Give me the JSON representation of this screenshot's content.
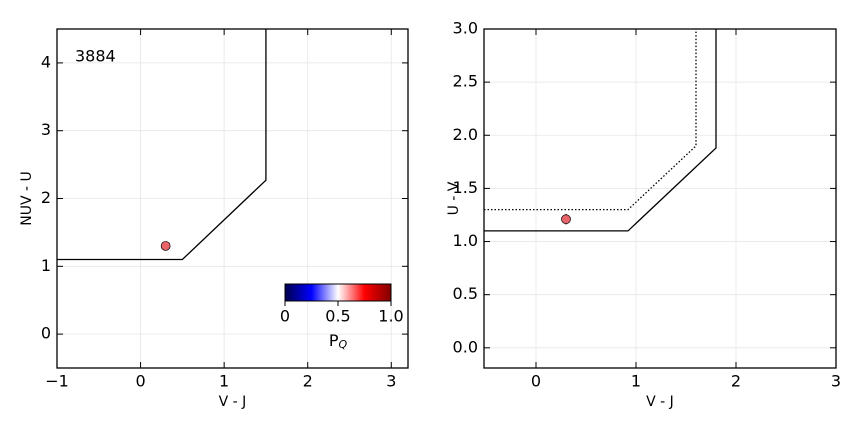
{
  "chart_data": [
    {
      "type": "line",
      "annotation": "3884",
      "x_label": "V - J",
      "y_label": "NUV - U",
      "xlim": [
        -1,
        3.2
      ],
      "ylim": [
        -0.5,
        4.5
      ],
      "xticks": [
        {
          "value": -1,
          "label": "−1"
        },
        0,
        1,
        2,
        3
      ],
      "yticks": [
        0,
        1,
        2,
        3,
        4
      ],
      "grid": true,
      "lines": [
        {
          "x": [
            -1,
            0.5,
            1.5,
            1.5
          ],
          "y": [
            1.1,
            1.1,
            2.27,
            4.5
          ],
          "style": "solid",
          "color": "#000000"
        }
      ],
      "points": [
        {
          "x": 0.3,
          "y": 1.3,
          "yerr": 0.06,
          "color": "#e8636a"
        }
      ],
      "colorbar": {
        "label": "P",
        "label_sub": "Q",
        "clim": [
          0,
          1
        ],
        "ticks": [
          0,
          0.5,
          {
            "value": 1,
            "label": "1.0"
          }
        ],
        "colors": [
          "#00004c",
          "#0000ff",
          "#ffffff",
          "#ff0000",
          "#800000"
        ]
      }
    },
    {
      "type": "line",
      "x_label": "V - J",
      "y_label": "U - V",
      "xlim": [
        -0.52,
        3
      ],
      "ylim": [
        -0.19,
        3.0
      ],
      "xticks": [
        0,
        1,
        2,
        3
      ],
      "yticks": [
        {
          "value": 0,
          "label": "0.0"
        },
        0.5,
        {
          "value": 1,
          "label": "1.0"
        },
        1.5,
        {
          "value": 2,
          "label": "2.0"
        },
        2.5,
        {
          "value": 3,
          "label": "3.0"
        }
      ],
      "grid": true,
      "lines": [
        {
          "x": [
            -0.52,
            0.92,
            1.8,
            1.8
          ],
          "y": [
            1.1,
            1.1,
            1.88,
            3.0
          ],
          "style": "solid",
          "color": "#000000"
        },
        {
          "x": [
            -0.52,
            0.92,
            1.6,
            1.6
          ],
          "y": [
            1.3,
            1.3,
            1.9,
            3.0
          ],
          "style": "dotted",
          "color": "#000000"
        }
      ],
      "points": [
        {
          "x": 0.3,
          "y": 1.21,
          "yerr": 0.05,
          "color": "#e8636a"
        }
      ]
    }
  ]
}
